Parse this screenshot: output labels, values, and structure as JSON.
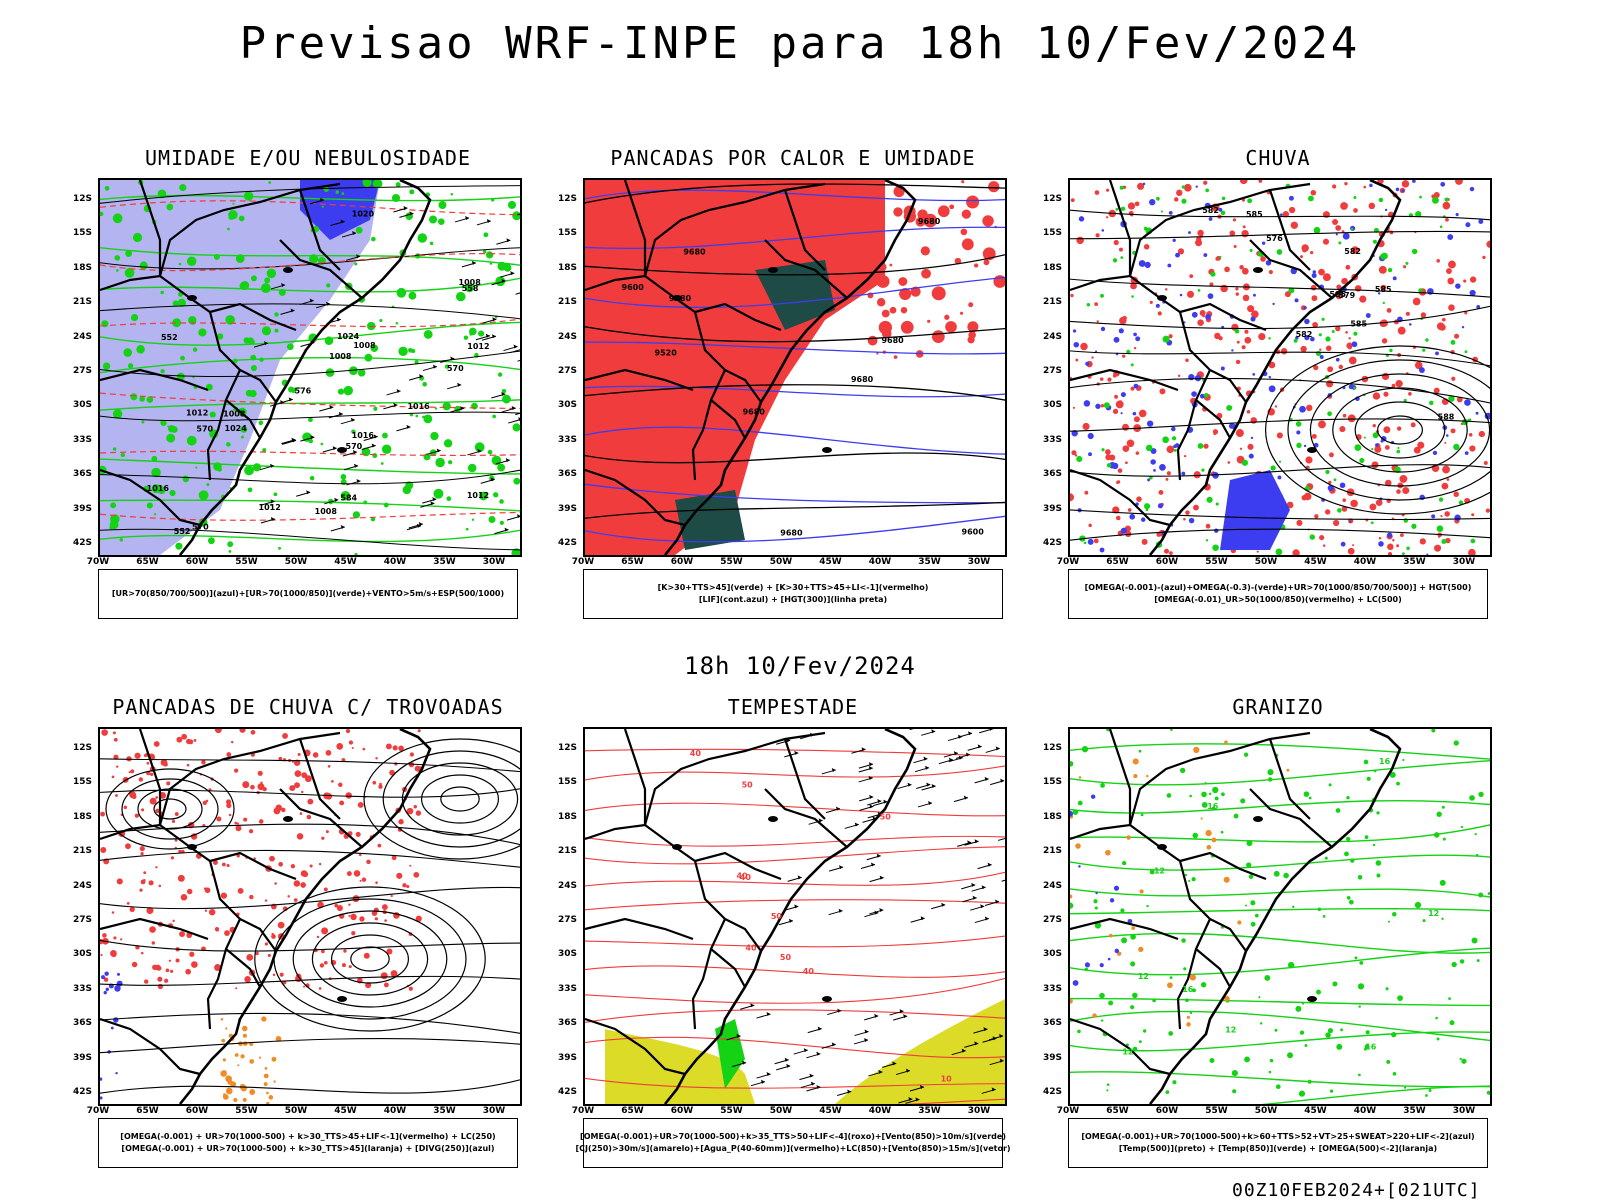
{
  "title": "Previsao WRF-INPE  para 18h 10/Fev/2024",
  "middle_time": "18h 10/Fev/2024",
  "footer": "00Z10FEB2024+[021UTC]",
  "lat_labels": [
    "12S",
    "15S",
    "18S",
    "21S",
    "24S",
    "27S",
    "30S",
    "33S",
    "36S",
    "39S",
    "42S"
  ],
  "lon_labels": [
    "70W",
    "65W",
    "60W",
    "55W",
    "50W",
    "45W",
    "40W",
    "35W",
    "30W"
  ],
  "colors": {
    "light_blue_fill": "#b4b4f0",
    "blue": "#3c3cf0",
    "green": "#14d214",
    "red": "#f03c3c",
    "dark_teal": "#1e4b46",
    "yellow": "#dcdc28",
    "orange": "#f08c28",
    "black": "#000000"
  },
  "panels": [
    {
      "title": "UMIDADE E/OU NEBULOSIDADE",
      "legend": [
        "[UR>70(850/700/500)](azul)+[UR>70(1000/850)](verde)+VENTO>5m/s+ESP(500/1000)"
      ],
      "contour_labels": [
        "1016",
        "1016",
        "1008",
        "1008",
        "1012",
        "1016",
        "1020",
        "1024",
        "1024",
        "1012",
        "1012",
        "1008",
        "1008",
        "1008",
        "1012",
        "570",
        "570",
        "570",
        "570",
        "584",
        "558",
        "552",
        "552",
        "576"
      ]
    },
    {
      "title": "PANCADAS POR CALOR E UMIDADE",
      "legend": [
        "[K>30+TTS>45](verde)  +  [K>30+TTS>45+LI<-1](vermelho)",
        "[LIF](cont.azul)  +  [HGT(300)](linha preta)"
      ],
      "contour_labels": [
        "9680",
        "9680",
        "9680",
        "9680",
        "9680",
        "9680",
        "9680",
        "9600",
        "9600",
        "9520"
      ]
    },
    {
      "title": "CHUVA",
      "legend": [
        "[OMEGA(-0.001)-(azul)+OMEGA(-0.3)-(verde)+UR>70(1000/850/700/500)]  +  HGT(500)",
        "[OMEGA(-0.01)_UR>50(1000/850)(vermelho)  +  LC(500)"
      ],
      "contour_labels": [
        "585",
        "585",
        "585",
        "582",
        "582",
        "588",
        "585",
        "579",
        "576",
        "582"
      ]
    },
    {
      "title": "PANCADAS DE CHUVA C/ TROVOADAS",
      "legend": [
        "[OMEGA(-0.001)  +  UR>70(1000-500)  +  k>30_TTS>45+LIF<-1](vermelho)  +  LC(250)",
        "[OMEGA(-0.001)  +  UR>70(1000-500)  +  k>30_TTS>45](laranja)  +  [DIVG(250)](azul)"
      ],
      "contour_labels": []
    },
    {
      "title": "TEMPESTADE",
      "legend": [
        "[OMEGA(-0.001)+UR>70(1000-500)+k>35_TTS>50+LIF<-4](roxo)+[Vento(850)>10m/s](verde)",
        "[CJ(250)>30m/s](amarelo)+[Agua_P(40-60mm)](vermelho)+LC(850)+[Vento(850)>15m/s](vetor)"
      ],
      "contour_labels": [
        "50",
        "50",
        "50",
        "40",
        "40",
        "40",
        "40",
        "40",
        "10",
        "50"
      ]
    },
    {
      "title": "GRANIZO",
      "legend": [
        "[OMEGA(-0.001)+UR>70(1000-500)+k>60+TTS>52+VT>25+SWEAT>220+LIF<-2](azul)",
        "[Temp(500)](preto)  +  [Temp(850)](verde)  +  [OMEGA(500)<-2](laranja)"
      ],
      "contour_labels": [
        "16",
        "16",
        "16",
        "16",
        "12",
        "12",
        "12",
        "12",
        "12"
      ]
    }
  ]
}
